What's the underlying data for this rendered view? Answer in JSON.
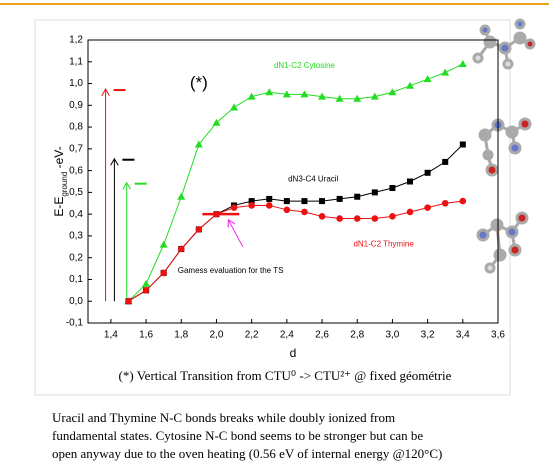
{
  "chart_data": {
    "type": "line",
    "ylabel": "E-E",
    "ylabel_sub": "ground",
    "ylabel_suffix": " -eV-",
    "xlabel": "d",
    "xlim": [
      1.27,
      3.6
    ],
    "ylim": [
      -0.1,
      1.2
    ],
    "xticks": [
      {
        "value": 1.4,
        "label": "1,4"
      },
      {
        "value": 1.6,
        "label": "1,6"
      },
      {
        "value": 1.8,
        "label": "1,8"
      },
      {
        "value": 2.0,
        "label": "2,0"
      },
      {
        "value": 2.2,
        "label": "2,2"
      },
      {
        "value": 2.4,
        "label": "2,4"
      },
      {
        "value": 2.6,
        "label": "2,6"
      },
      {
        "value": 2.8,
        "label": "2,8"
      },
      {
        "value": 3.0,
        "label": "3,0"
      },
      {
        "value": 3.2,
        "label": "3,2"
      },
      {
        "value": 3.4,
        "label": "3,4"
      },
      {
        "value": 3.6,
        "label": "3,6"
      }
    ],
    "yticks": [
      {
        "value": -0.1,
        "label": "-0,1"
      },
      {
        "value": 0,
        "label": "0,0"
      },
      {
        "value": 0.1,
        "label": "0,1"
      },
      {
        "value": 0.2,
        "label": "0,2"
      },
      {
        "value": 0.3,
        "label": "0,3"
      },
      {
        "value": 0.4,
        "label": "0,4"
      },
      {
        "value": 0.5,
        "label": "0,5"
      },
      {
        "value": 0.6,
        "label": "0,6"
      },
      {
        "value": 0.7,
        "label": "0,7"
      },
      {
        "value": 0.8,
        "label": "0,8"
      },
      {
        "value": 0.9,
        "label": "0,9"
      },
      {
        "value": 1.0,
        "label": "1,0"
      },
      {
        "value": 1.1,
        "label": "1,1"
      },
      {
        "value": 1.2,
        "label": "1,2"
      }
    ],
    "x": [
      1.5,
      1.6,
      1.7,
      1.8,
      1.9,
      2.0,
      2.1,
      2.2,
      2.3,
      2.4,
      2.5,
      2.6,
      2.7,
      2.8,
      2.9,
      3.0,
      3.1,
      3.2,
      3.3,
      3.4
    ],
    "series": [
      {
        "name": "dN1-C2 Cytosine",
        "color": "#22dd22",
        "marker": "triangle",
        "label_at": [
          2.5,
          1.08
        ],
        "values": [
          0.0,
          0.08,
          0.26,
          0.48,
          0.72,
          0.82,
          0.89,
          0.94,
          0.96,
          0.95,
          0.95,
          0.94,
          0.93,
          0.93,
          0.94,
          0.96,
          0.99,
          1.02,
          1.05,
          1.09
        ]
      },
      {
        "name": "dN3-C4 Uracil",
        "color": "#000000",
        "marker": "square",
        "label_at": [
          2.55,
          0.56
        ],
        "values": [
          0.0,
          0.05,
          0.13,
          0.24,
          0.33,
          0.4,
          0.44,
          0.46,
          0.47,
          0.46,
          0.46,
          0.46,
          0.47,
          0.48,
          0.5,
          0.52,
          0.55,
          0.59,
          0.64,
          0.72
        ]
      },
      {
        "name": "dN1-C2 Thymine",
        "color": "#ee1111",
        "marker": "circle",
        "label_at": [
          2.95,
          0.26
        ],
        "values": [
          0.0,
          0.05,
          0.13,
          0.24,
          0.33,
          0.4,
          0.43,
          0.44,
          0.44,
          0.42,
          0.41,
          0.39,
          0.38,
          0.38,
          0.38,
          0.39,
          0.41,
          0.43,
          0.45,
          0.46
        ]
      }
    ],
    "vertical_transitions": {
      "x": [
        1.37,
        1.42,
        1.49
      ],
      "values": [
        0.97,
        0.65,
        0.54
      ],
      "colors": [
        "#ee1111",
        "#000000",
        "#22dd22"
      ]
    },
    "ts_bar": {
      "x": [
        1.92,
        2.13
      ],
      "value": 0.4,
      "color": "#ee1111"
    },
    "ts_annotation": {
      "text": "Gamess evaluation for the TS",
      "at": [
        1.78,
        0.14
      ],
      "arrow_from": [
        2.15,
        0.25
      ],
      "arrow_to": [
        2.07,
        0.37
      ],
      "arrow_color": "#ee22ee"
    },
    "star_label": {
      "text": "(*)",
      "at": [
        1.9,
        1.0
      ]
    }
  },
  "caption": "(*) Vertical Transition from CTU⁰ -> CTU²⁺ @ fixed géométrie",
  "paragraph": [
    "Uracil and Thymine N-C bonds breaks while doubly ionized from",
    "fundamental states. Cytosine N-C bond seems to be stronger but can be",
    "open anyway due to the oven heating (0.56 eV of internal energy @120°C)"
  ]
}
